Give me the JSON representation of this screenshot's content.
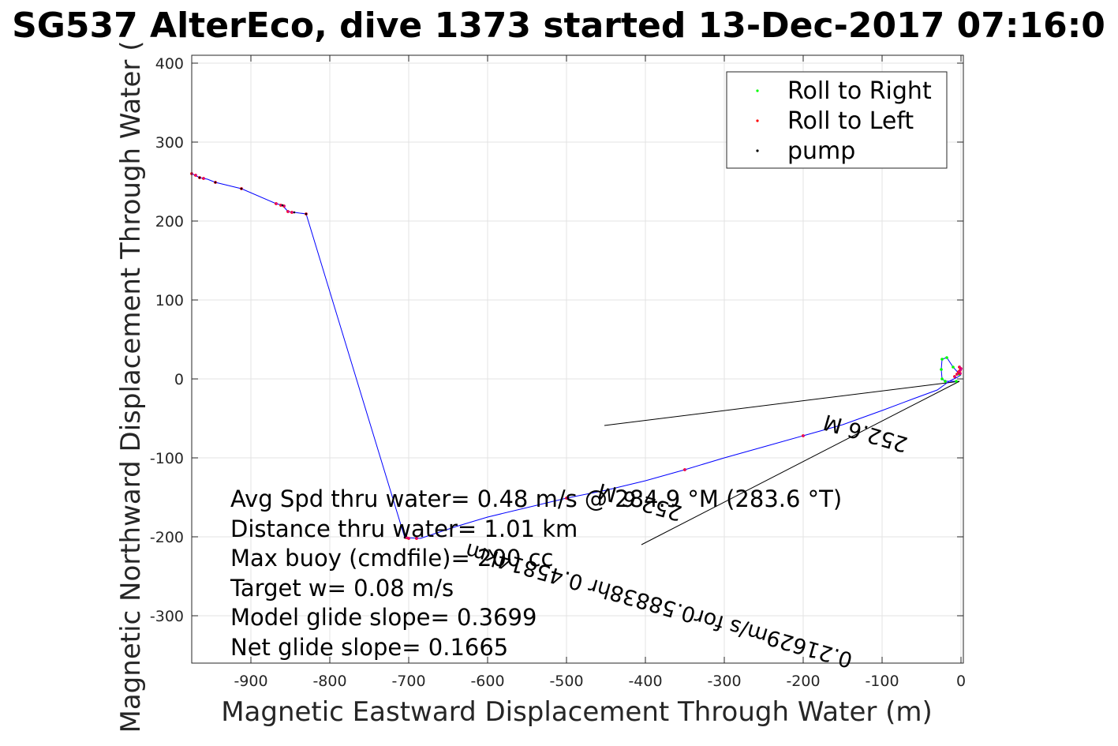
{
  "chart_data": {
    "type": "line",
    "title": "SG537 AlterEco, dive 1373 started 13-Dec-2017 07:16:0",
    "xlabel": "Magnetic Eastward Displacement Through Water (m)",
    "ylabel": "Magnetic Northward Displacement Through Water (",
    "xlim": [
      -975,
      3
    ],
    "ylim": [
      -360,
      410
    ],
    "xticks": [
      -900,
      -800,
      -700,
      -600,
      -500,
      -400,
      -300,
      -200,
      -100,
      0
    ],
    "yticks": [
      400,
      300,
      200,
      100,
      0,
      -100,
      -200,
      -300
    ],
    "grid": true,
    "legend": {
      "placement": "top-right",
      "entries": [
        {
          "label": "Roll to Right",
          "color": "#00ff00"
        },
        {
          "label": "Roll to Left",
          "color": "#ff0000"
        },
        {
          "label": "pump",
          "color": "#000000"
        }
      ]
    },
    "track": {
      "color": "#0000ff",
      "points": [
        [
          -975,
          260
        ],
        [
          -965,
          255
        ],
        [
          -955,
          253
        ],
        [
          -945,
          249
        ],
        [
          -912,
          241
        ],
        [
          -868,
          222
        ],
        [
          -860,
          220
        ],
        [
          -853,
          212
        ],
        [
          -845,
          211
        ],
        [
          -830,
          209
        ],
        [
          -705,
          -201
        ],
        [
          -685,
          -202
        ],
        [
          -640,
          -187
        ],
        [
          -600,
          -175
        ],
        [
          -550,
          -163
        ],
        [
          -500,
          -151
        ],
        [
          -450,
          -141
        ],
        [
          -400,
          -129
        ],
        [
          -350,
          -115
        ],
        [
          -300,
          -100
        ],
        [
          -250,
          -86
        ],
        [
          -200,
          -72
        ],
        [
          -150,
          -58
        ],
        [
          -100,
          -40
        ],
        [
          -60,
          -25
        ],
        [
          -30,
          -14
        ],
        [
          -15,
          -3
        ],
        [
          -5,
          2
        ],
        [
          0,
          5
        ]
      ]
    },
    "return_loop": {
      "color": "#00ff00",
      "points": [
        [
          -2,
          6
        ],
        [
          -10,
          15
        ],
        [
          -18,
          27
        ],
        [
          -24,
          25
        ],
        [
          -25,
          12
        ],
        [
          -24,
          0
        ],
        [
          -20,
          -3
        ],
        [
          -6,
          -3
        ]
      ]
    },
    "roll_left_points": [
      [
        -975,
        260
      ],
      [
        -970,
        258
      ],
      [
        -965,
        255
      ],
      [
        -960,
        254
      ],
      [
        -945,
        249
      ],
      [
        -912,
        241
      ],
      [
        -868,
        222
      ],
      [
        -862,
        220
      ],
      [
        -858,
        219
      ],
      [
        -853,
        212
      ],
      [
        -848,
        211
      ],
      [
        -830,
        209
      ],
      [
        -703,
        -201
      ],
      [
        -700,
        -202
      ],
      [
        -690,
        -202
      ],
      [
        -500,
        -151
      ],
      [
        -350,
        -115
      ],
      [
        -200,
        -72
      ],
      [
        -8,
        3
      ],
      [
        -5,
        6
      ],
      [
        -3,
        9
      ],
      [
        -1,
        11
      ],
      [
        0,
        13
      ],
      [
        -2,
        15
      ],
      [
        -1,
        7
      ]
    ],
    "pump_points": [
      [
        -965,
        255
      ],
      [
        -945,
        249
      ],
      [
        -912,
        241
      ],
      [
        -860,
        220
      ],
      [
        -845,
        211
      ],
      [
        -830,
        209
      ],
      [
        -705,
        -201
      ]
    ],
    "reference_lines": [
      {
        "from": [
          -2,
          -3
        ],
        "to": [
          -452,
          -59
        ]
      },
      {
        "from": [
          -2,
          -3
        ],
        "to": [
          -405,
          -210
        ]
      }
    ],
    "rotated_labels": [
      {
        "text": "0.21629m/s for0.58838hr  0.45814km"
      },
      {
        "text": "252.6 M"
      },
      {
        "text": "252.6 M"
      }
    ],
    "annotations": [
      "Avg Spd thru water=  0.48 m/s @ 284.9 °M (283.6 °T)",
      "Distance thru water= 1.01 km",
      "Max buoy (cmdfile)= 200 cc",
      "Target w= 0.08 m/s",
      "Model glide slope= 0.3699",
      "Net glide slope= 0.1665"
    ]
  }
}
